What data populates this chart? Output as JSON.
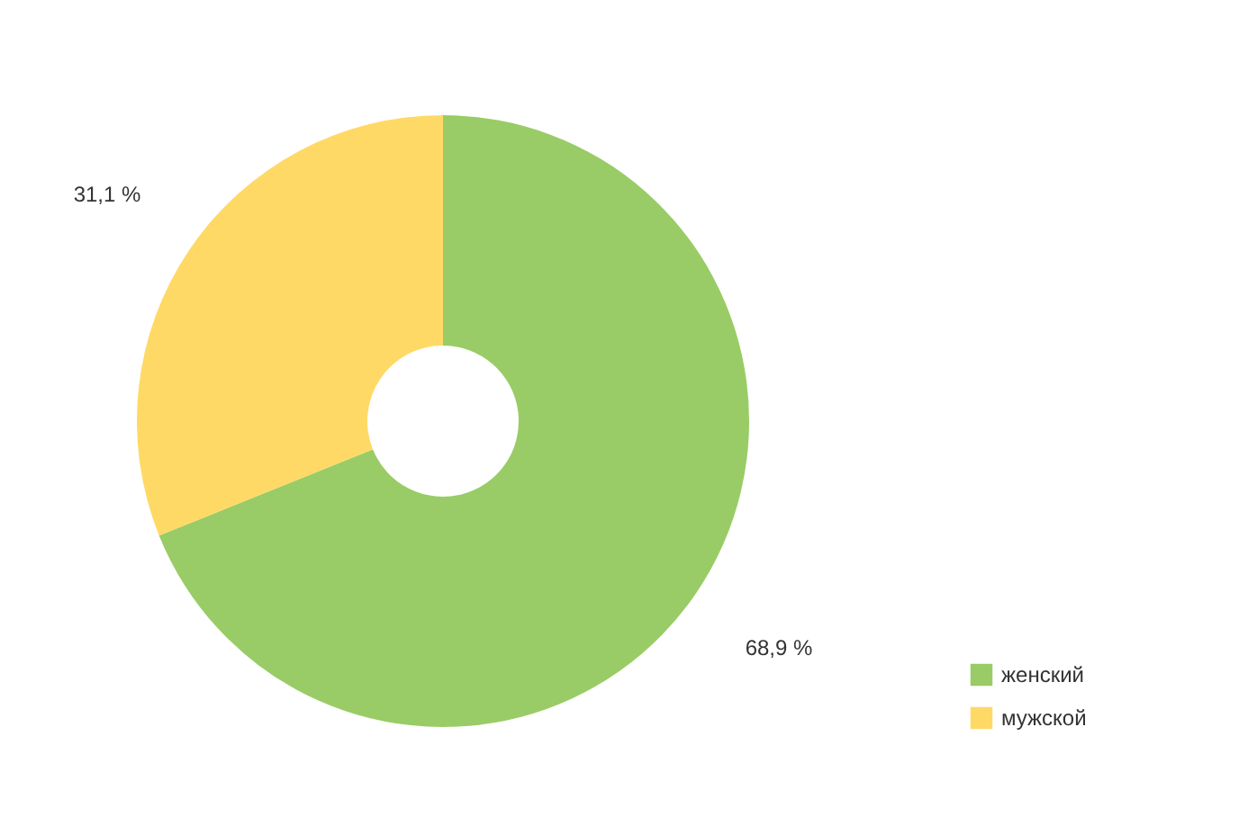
{
  "chart_data": {
    "type": "donut",
    "categories": [
      "женский",
      "мужской"
    ],
    "values": [
      68.9,
      31.1
    ],
    "colors": [
      "#99cc66",
      "#ffd966"
    ],
    "value_labels": [
      "68,9 %",
      "31,1 %"
    ],
    "legend": "bottom right"
  }
}
